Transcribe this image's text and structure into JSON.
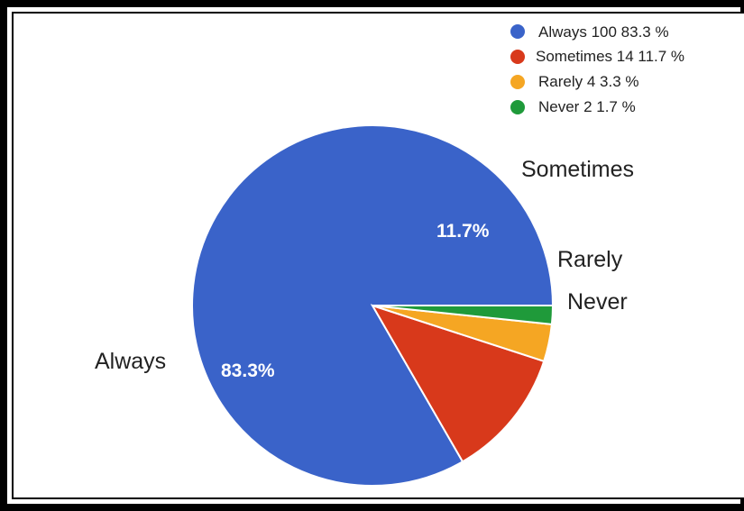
{
  "chart_data": {
    "type": "pie",
    "title": "",
    "legend_position": "top-right",
    "slices": [
      {
        "label": "Always",
        "value": 100,
        "percent_label": "83.3%",
        "legend": "Always  100  83.3 %",
        "color": "#3a63c9"
      },
      {
        "label": "Sometimes",
        "value": 14,
        "percent_label": "11.7%",
        "legend": "Sometimes  14  11.7 %",
        "color": "#d8391b"
      },
      {
        "label": "Rarely",
        "value": 4,
        "percent_label": "",
        "legend": "Rarely  4  3.3  %",
        "color": "#f5a623"
      },
      {
        "label": "Never",
        "value": 2,
        "percent_label": "",
        "legend": "Never  2  1.7 %",
        "color": "#1f9a3a"
      }
    ]
  }
}
